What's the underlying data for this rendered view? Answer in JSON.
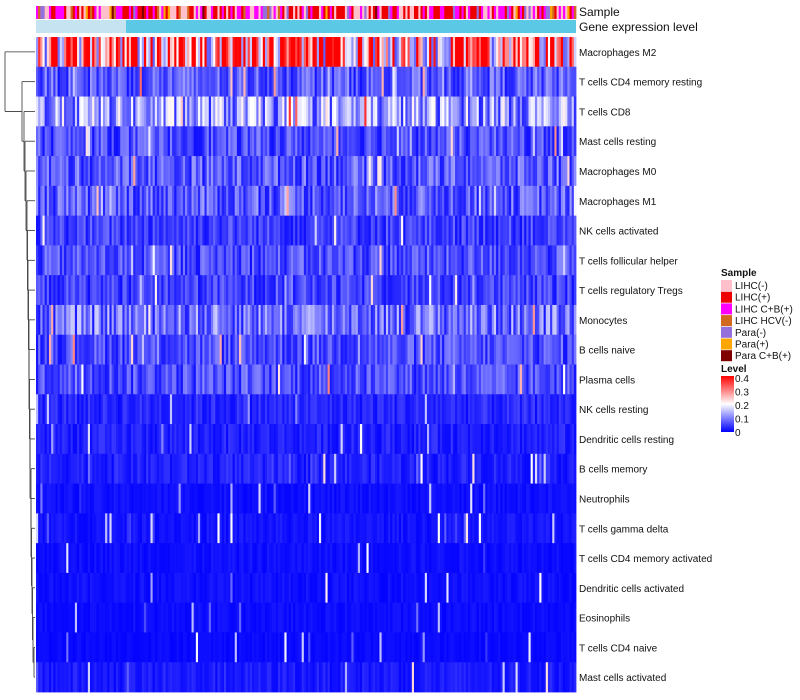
{
  "chart_data": {
    "type": "heatmap",
    "title": "",
    "annotation_tracks": [
      {
        "key": "sample",
        "label": "Sample"
      },
      {
        "key": "gene",
        "label": "Gene expression level"
      }
    ],
    "rows": [
      {
        "label": "Macrophages M2",
        "mean": 0.3
      },
      {
        "label": "T cells CD4 memory resting",
        "mean": 0.07
      },
      {
        "label": "T cells CD8",
        "mean": 0.12
      },
      {
        "label": "Mast cells resting",
        "mean": 0.06
      },
      {
        "label": "Macrophages M0",
        "mean": 0.07
      },
      {
        "label": "Macrophages M1",
        "mean": 0.07
      },
      {
        "label": "NK cells activated",
        "mean": 0.05
      },
      {
        "label": "T cells follicular helper",
        "mean": 0.06
      },
      {
        "label": "T cells regulatory  Tregs",
        "mean": 0.05
      },
      {
        "label": "Monocytes",
        "mean": 0.09
      },
      {
        "label": "B cells naive",
        "mean": 0.06
      },
      {
        "label": "Plasma cells",
        "mean": 0.06
      },
      {
        "label": "NK cells resting",
        "mean": 0.03
      },
      {
        "label": "Dendritic cells resting",
        "mean": 0.025
      },
      {
        "label": "B cells memory",
        "mean": 0.025
      },
      {
        "label": "Neutrophils",
        "mean": 0.012
      },
      {
        "label": "T cells gamma delta",
        "mean": 0.015
      },
      {
        "label": "T cells CD4 memory activated",
        "mean": 0.012
      },
      {
        "label": "Dendritic cells activated",
        "mean": 0.012
      },
      {
        "label": "Eosinophils",
        "mean": 0.01
      },
      {
        "label": "T cells CD4 naive",
        "mean": 0.008
      },
      {
        "label": "Mast cells activated",
        "mean": 0.02
      }
    ],
    "n_samples": 250,
    "legend": {
      "sample": {
        "title": "Sample",
        "items": [
          {
            "label": "LIHC(-)",
            "color": "#ffc0cb"
          },
          {
            "label": "LIHC(+)",
            "color": "#ee0000"
          },
          {
            "label": "LIHC C+B(+)",
            "color": "#ff00ff"
          },
          {
            "label": "LIHC HCV(-)",
            "color": "#d2691e"
          },
          {
            "label": "Para(-)",
            "color": "#9370db"
          },
          {
            "label": "Para(+)",
            "color": "#ffa500"
          },
          {
            "label": "Para C+B(+)",
            "color": "#800000"
          }
        ]
      },
      "level": {
        "title": "Level",
        "ticks": [
          "0.4",
          "0.3",
          "0.2",
          "0.1",
          "0"
        ],
        "range": [
          0,
          0.4
        ],
        "colors": [
          "#0000ff",
          "#ffffff",
          "#ff0000"
        ]
      }
    },
    "gene_expression_color": "#5bc8e6",
    "gene_expression_light_color": "#c5e3f0"
  }
}
